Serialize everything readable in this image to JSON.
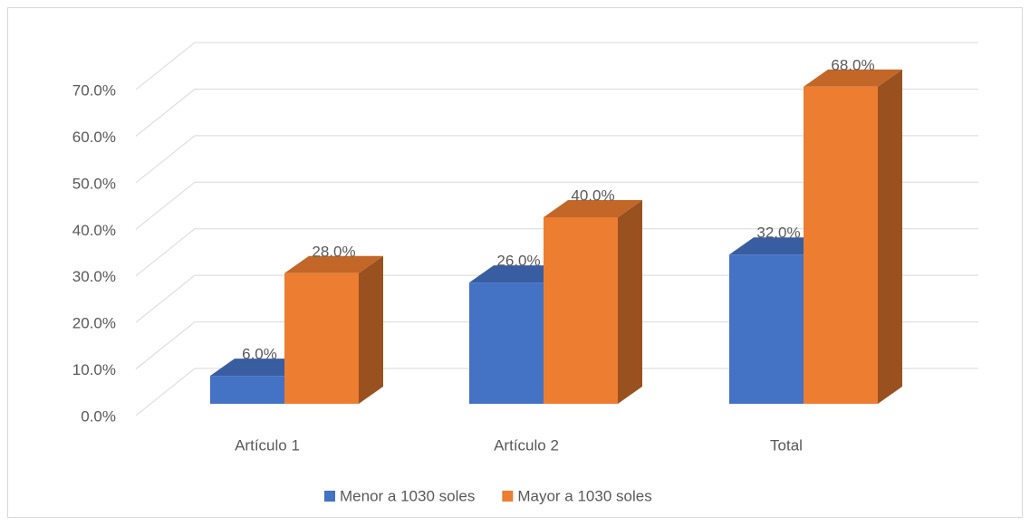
{
  "chart_data": {
    "type": "bar3d",
    "categories": [
      "Artículo 1",
      "Artículo 2",
      "Total"
    ],
    "series": [
      {
        "name": "Menor a 1030 soles",
        "color": "#4472c4",
        "values": [
          6,
          26,
          32
        ],
        "value_labels": [
          "6.0%",
          "26.0%",
          "32.0%"
        ]
      },
      {
        "name": "Mayor a 1030 soles",
        "color": "#ed7d31",
        "values": [
          28,
          40,
          68
        ],
        "value_labels": [
          "28.0%",
          "40.0%",
          "68.0%"
        ]
      }
    ],
    "ylim": [
      0,
      70
    ],
    "yticks": [
      {
        "value": 0,
        "label": "0.0%"
      },
      {
        "value": 10,
        "label": "10.0%"
      },
      {
        "value": 20,
        "label": "20.0%"
      },
      {
        "value": 30,
        "label": "30.0%"
      },
      {
        "value": 40,
        "label": "40.0%"
      },
      {
        "value": 50,
        "label": "50.0%"
      },
      {
        "value": 60,
        "label": "60.0%"
      },
      {
        "value": 70,
        "label": "70.0%"
      }
    ],
    "grid": true,
    "legend": "bottom"
  }
}
